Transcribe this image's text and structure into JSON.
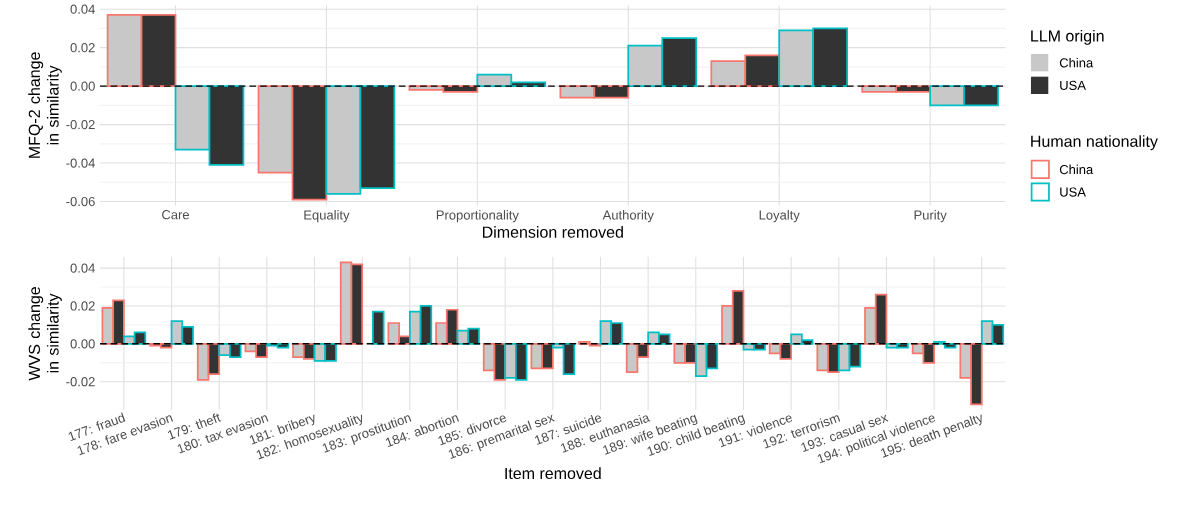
{
  "chart_data": [
    {
      "type": "bar",
      "xlabel": "Dimension removed",
      "ylabel": "MFQ-2 change in similarity",
      "categories": [
        "Care",
        "Equality",
        "Proportionality",
        "Authority",
        "Loyalty",
        "Purity"
      ],
      "series": [
        {
          "color": "#c8c8c8",
          "values": [
            0.037,
            -0.045,
            -0.002,
            -0.006,
            0.013,
            -0.003
          ]
        },
        {
          "color": "#333333",
          "values": [
            0.037,
            -0.059,
            -0.003,
            -0.006,
            0.016,
            -0.003
          ]
        },
        {
          "color": "#c8c8c8",
          "values": [
            -0.033,
            -0.056,
            0.006,
            0.021,
            0.029,
            -0.01
          ]
        },
        {
          "color": "#333333",
          "values": [
            -0.041,
            -0.053,
            0.002,
            0.025,
            0.03,
            -0.01
          ]
        }
      ],
      "ylim": [
        -0.062,
        0.042
      ],
      "yticks": [
        {
          "value": -0.06,
          "label": "-0.06"
        },
        {
          "value": -0.04,
          "label": "-0.04"
        },
        {
          "value": -0.02,
          "label": "-0.02"
        },
        {
          "value": 0,
          "label": "0.00"
        },
        {
          "value": 0.02,
          "label": "0.02"
        },
        {
          "value": 0.04,
          "label": "0.04"
        }
      ],
      "ref_lines": [
        {
          "axis": "y",
          "value": 0,
          "color": "#000000",
          "line_style": "dashed"
        }
      ],
      "grid": true,
      "annotations": [
        "LLM origin",
        "China",
        "USA",
        "Human nationality",
        "China",
        "USA"
      ]
    },
    {
      "type": "bar",
      "xlabel": "Item removed",
      "ylabel": "WVS change in similarity",
      "categories": [
        "177: fraud",
        "178: fare evasion",
        "179: theft",
        "180: tax evasion",
        "181: bribery",
        "182: homosexuality",
        "183: prostitution",
        "184: abortion",
        "185: divorce",
        "186: premarital sex",
        "187: suicide",
        "188: euthanasia",
        "189: wife beating",
        "190: child beating",
        "191: violence",
        "192: terrorism",
        "193: casual sex",
        "194: political violence",
        "195: death penalty"
      ],
      "series": [
        {
          "color": "#c8c8c8",
          "values": [
            0.019,
            -0.001,
            -0.019,
            -0.004,
            -0.007,
            0.043,
            0.011,
            0.011,
            -0.014,
            -0.013,
            0.001,
            -0.015,
            -0.01,
            0.02,
            -0.005,
            -0.014,
            0.019,
            -0.005,
            -0.018
          ]
        },
        {
          "color": "#333333",
          "values": [
            0.023,
            -0.002,
            -0.016,
            -0.007,
            -0.008,
            0.042,
            0.004,
            0.018,
            -0.019,
            -0.013,
            -0.001,
            -0.007,
            -0.01,
            0.028,
            -0.008,
            -0.015,
            0.026,
            -0.01,
            -0.032
          ]
        },
        {
          "color": "#c8c8c8",
          "values": [
            0.004,
            0.012,
            -0.006,
            -0.001,
            -0.009,
            null,
            0.017,
            0.007,
            -0.018,
            -0.002,
            0.012,
            0.006,
            -0.017,
            -0.003,
            0.005,
            -0.014,
            -0.002,
            0.001,
            0.012
          ]
        },
        {
          "color": "#333333",
          "values": [
            0.006,
            0.009,
            -0.007,
            -0.002,
            -0.009,
            0.017,
            0.02,
            0.008,
            -0.019,
            -0.016,
            0.011,
            0.005,
            -0.013,
            -0.003,
            0.002,
            -0.012,
            -0.002,
            -0.002,
            0.01
          ]
        }
      ],
      "ylim": [
        -0.035,
        0.046
      ],
      "yticks": [
        {
          "value": -0.02,
          "label": "-0.02"
        },
        {
          "value": 0,
          "label": "0.00"
        },
        {
          "value": 0.02,
          "label": "0.02"
        },
        {
          "value": 0.04,
          "label": "0.04"
        }
      ],
      "ref_lines": [
        {
          "axis": "y",
          "value": 0,
          "color": "#000000",
          "line_style": "dashed"
        }
      ],
      "grid": true
    }
  ]
}
